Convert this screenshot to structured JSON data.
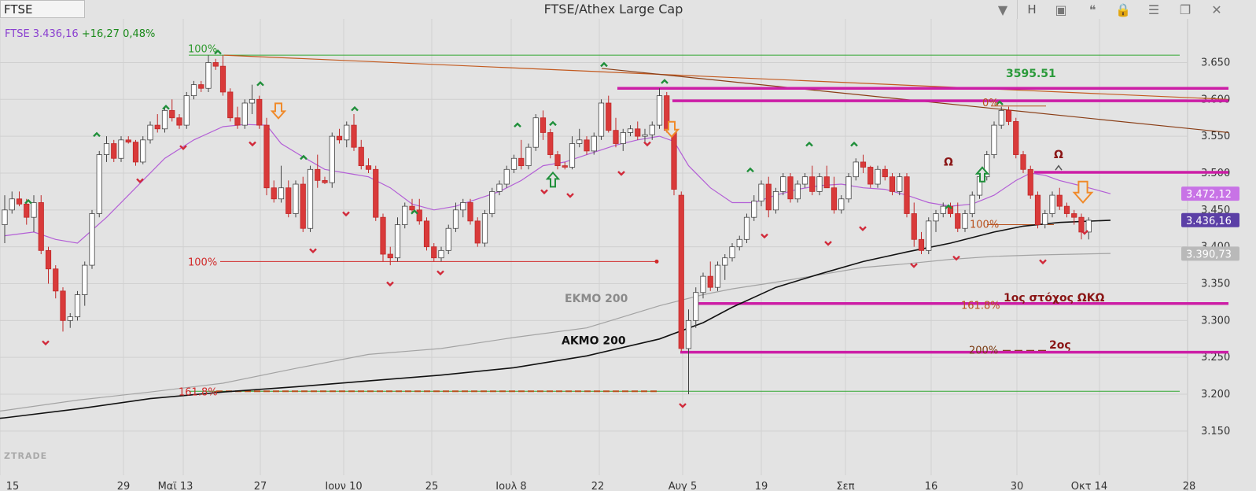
{
  "toolbar": {
    "symbol": "FTSE",
    "title": "FTSE/Athex Large Cap",
    "h_button": "H"
  },
  "ticker": {
    "name": "FTSE 3.436,16",
    "change": "+16,27 0,48%"
  },
  "watermark": "ZTRADE",
  "colors": {
    "up": "#ffffff",
    "down": "#d93a3a",
    "ma_purple": "#b35fd6",
    "magenta": "#cc1ea6",
    "akmo": "#111111",
    "ekmo": "#a3a3a3",
    "trend": "#b8501c",
    "green_marker": "#1f8f3a",
    "red_marker": "#d12a3a",
    "orange_arrow": "#f08a2a"
  },
  "chart_data": {
    "type": "candlestick",
    "ylim": [
      3105,
      3690
    ],
    "y_ticks": [
      "3.650",
      "3.600",
      "3.550",
      "3.500",
      "3.450",
      "3.400",
      "3.350",
      "3.300",
      "3.250",
      "3.200",
      "3.150"
    ],
    "x_ticks": [
      "15",
      "29",
      "Μαϊ 13",
      "27",
      "Ιουν 10",
      "25",
      "Ιουλ 8",
      "22",
      "Αυγ 5",
      "19",
      "Σεπ",
      "16",
      "30",
      "Οκτ 14",
      "28"
    ],
    "candles": [
      [
        3430,
        3470,
        3405,
        3450
      ],
      [
        3450,
        3475,
        3445,
        3465
      ],
      [
        3465,
        3475,
        3455,
        3458
      ],
      [
        3458,
        3465,
        3430,
        3440
      ],
      [
        3440,
        3470,
        3420,
        3460
      ],
      [
        3460,
        3470,
        3390,
        3395
      ],
      [
        3395,
        3400,
        3350,
        3370
      ],
      [
        3370,
        3375,
        3330,
        3340
      ],
      [
        3340,
        3345,
        3285,
        3300
      ],
      [
        3300,
        3310,
        3290,
        3305
      ],
      [
        3305,
        3340,
        3300,
        3335
      ],
      [
        3335,
        3380,
        3320,
        3375
      ],
      [
        3375,
        3450,
        3370,
        3445
      ],
      [
        3445,
        3530,
        3440,
        3525
      ],
      [
        3525,
        3550,
        3515,
        3540
      ],
      [
        3540,
        3545,
        3515,
        3520
      ],
      [
        3520,
        3550,
        3515,
        3545
      ],
      [
        3545,
        3550,
        3540,
        3542
      ],
      [
        3542,
        3545,
        3510,
        3515
      ],
      [
        3515,
        3550,
        3512,
        3545
      ],
      [
        3545,
        3570,
        3540,
        3565
      ],
      [
        3565,
        3580,
        3555,
        3560
      ],
      [
        3560,
        3590,
        3555,
        3585
      ],
      [
        3585,
        3600,
        3570,
        3575
      ],
      [
        3575,
        3580,
        3560,
        3565
      ],
      [
        3565,
        3610,
        3560,
        3605
      ],
      [
        3605,
        3625,
        3600,
        3620
      ],
      [
        3620,
        3625,
        3610,
        3615
      ],
      [
        3615,
        3660,
        3610,
        3650
      ],
      [
        3650,
        3655,
        3640,
        3645
      ],
      [
        3645,
        3660,
        3605,
        3610
      ],
      [
        3610,
        3615,
        3570,
        3575
      ],
      [
        3575,
        3590,
        3560,
        3565
      ],
      [
        3565,
        3600,
        3560,
        3595
      ],
      [
        3595,
        3620,
        3580,
        3600
      ],
      [
        3600,
        3605,
        3560,
        3565
      ],
      [
        3565,
        3575,
        3470,
        3480
      ],
      [
        3480,
        3490,
        3460,
        3465
      ],
      [
        3465,
        3510,
        3460,
        3480
      ],
      [
        3480,
        3490,
        3440,
        3445
      ],
      [
        3445,
        3490,
        3440,
        3485
      ],
      [
        3485,
        3495,
        3420,
        3425
      ],
      [
        3425,
        3510,
        3420,
        3505
      ],
      [
        3505,
        3525,
        3480,
        3490
      ],
      [
        3490,
        3495,
        3485,
        3487
      ],
      [
        3487,
        3555,
        3480,
        3550
      ],
      [
        3550,
        3560,
        3540,
        3545
      ],
      [
        3545,
        3570,
        3535,
        3565
      ],
      [
        3565,
        3580,
        3530,
        3535
      ],
      [
        3535,
        3545,
        3505,
        3510
      ],
      [
        3510,
        3520,
        3500,
        3505
      ],
      [
        3505,
        3510,
        3435,
        3440
      ],
      [
        3440,
        3445,
        3380,
        3390
      ],
      [
        3390,
        3400,
        3375,
        3385
      ],
      [
        3385,
        3440,
        3380,
        3430
      ],
      [
        3430,
        3460,
        3425,
        3455
      ],
      [
        3455,
        3465,
        3445,
        3450
      ],
      [
        3450,
        3465,
        3430,
        3435
      ],
      [
        3435,
        3440,
        3395,
        3400
      ],
      [
        3400,
        3405,
        3380,
        3385
      ],
      [
        3385,
        3400,
        3380,
        3395
      ],
      [
        3395,
        3430,
        3390,
        3425
      ],
      [
        3425,
        3460,
        3420,
        3450
      ],
      [
        3450,
        3465,
        3440,
        3460
      ],
      [
        3460,
        3465,
        3430,
        3435
      ],
      [
        3435,
        3440,
        3400,
        3405
      ],
      [
        3405,
        3450,
        3400,
        3445
      ],
      [
        3445,
        3480,
        3440,
        3475
      ],
      [
        3475,
        3490,
        3470,
        3485
      ],
      [
        3485,
        3510,
        3480,
        3505
      ],
      [
        3505,
        3525,
        3500,
        3520
      ],
      [
        3520,
        3545,
        3505,
        3510
      ],
      [
        3510,
        3540,
        3505,
        3535
      ],
      [
        3535,
        3580,
        3530,
        3575
      ],
      [
        3575,
        3585,
        3545,
        3555
      ],
      [
        3555,
        3560,
        3520,
        3525
      ],
      [
        3525,
        3530,
        3505,
        3510
      ],
      [
        3510,
        3515,
        3505,
        3508
      ],
      [
        3508,
        3550,
        3505,
        3540
      ],
      [
        3540,
        3560,
        3535,
        3545
      ],
      [
        3545,
        3550,
        3525,
        3530
      ],
      [
        3530,
        3555,
        3525,
        3550
      ],
      [
        3550,
        3600,
        3545,
        3595
      ],
      [
        3595,
        3605,
        3555,
        3558
      ],
      [
        3558,
        3575,
        3535,
        3540
      ],
      [
        3540,
        3560,
        3530,
        3555
      ],
      [
        3555,
        3565,
        3550,
        3560
      ],
      [
        3560,
        3570,
        3545,
        3550
      ],
      [
        3550,
        3560,
        3540,
        3552
      ],
      [
        3552,
        3570,
        3545,
        3565
      ],
      [
        3565,
        3615,
        3560,
        3605
      ],
      [
        3605,
        3610,
        3555,
        3558
      ],
      [
        3555,
        3560,
        3470,
        3478
      ],
      [
        3470,
        3475,
        3258,
        3262
      ],
      [
        3262,
        3315,
        3200,
        3300
      ],
      [
        3300,
        3345,
        3290,
        3338
      ],
      [
        3338,
        3365,
        3330,
        3360
      ],
      [
        3360,
        3380,
        3340,
        3345
      ],
      [
        3345,
        3380,
        3340,
        3375
      ],
      [
        3375,
        3390,
        3355,
        3385
      ],
      [
        3385,
        3405,
        3380,
        3400
      ],
      [
        3400,
        3415,
        3395,
        3410
      ],
      [
        3410,
        3445,
        3405,
        3440
      ],
      [
        3440,
        3470,
        3435,
        3462
      ],
      [
        3462,
        3490,
        3455,
        3485
      ],
      [
        3485,
        3495,
        3440,
        3450
      ],
      [
        3450,
        3480,
        3445,
        3475
      ],
      [
        3475,
        3500,
        3470,
        3495
      ],
      [
        3495,
        3500,
        3460,
        3465
      ],
      [
        3465,
        3490,
        3460,
        3485
      ],
      [
        3485,
        3500,
        3480,
        3495
      ],
      [
        3495,
        3510,
        3470,
        3475
      ],
      [
        3475,
        3500,
        3470,
        3495
      ],
      [
        3495,
        3510,
        3480,
        3480
      ],
      [
        3480,
        3495,
        3445,
        3450
      ],
      [
        3450,
        3470,
        3445,
        3465
      ],
      [
        3465,
        3500,
        3460,
        3495
      ],
      [
        3495,
        3520,
        3490,
        3515
      ],
      [
        3515,
        3525,
        3500,
        3508
      ],
      [
        3508,
        3510,
        3480,
        3485
      ],
      [
        3485,
        3510,
        3480,
        3505
      ],
      [
        3505,
        3510,
        3490,
        3495
      ],
      [
        3495,
        3500,
        3470,
        3475
      ],
      [
        3475,
        3500,
        3470,
        3495
      ],
      [
        3495,
        3500,
        3440,
        3445
      ],
      [
        3445,
        3460,
        3400,
        3410
      ],
      [
        3410,
        3420,
        3390,
        3395
      ],
      [
        3395,
        3440,
        3390,
        3435
      ],
      [
        3435,
        3450,
        3420,
        3445
      ],
      [
        3445,
        3460,
        3440,
        3455
      ],
      [
        3455,
        3460,
        3440,
        3445
      ],
      [
        3445,
        3460,
        3420,
        3425
      ],
      [
        3425,
        3450,
        3420,
        3445
      ],
      [
        3445,
        3475,
        3440,
        3470
      ],
      [
        3470,
        3500,
        3465,
        3495
      ],
      [
        3495,
        3530,
        3490,
        3525
      ],
      [
        3525,
        3570,
        3520,
        3565
      ],
      [
        3565,
        3590,
        3560,
        3585
      ],
      [
        3585,
        3590,
        3565,
        3570
      ],
      [
        3570,
        3575,
        3520,
        3525
      ],
      [
        3525,
        3530,
        3500,
        3505
      ],
      [
        3505,
        3510,
        3465,
        3470
      ],
      [
        3470,
        3475,
        3425,
        3430
      ],
      [
        3430,
        3450,
        3425,
        3445
      ],
      [
        3445,
        3475,
        3440,
        3470
      ],
      [
        3470,
        3480,
        3450,
        3455
      ],
      [
        3455,
        3460,
        3440,
        3445
      ],
      [
        3445,
        3450,
        3430,
        3440
      ],
      [
        3440,
        3445,
        3410,
        3420
      ],
      [
        3420,
        3440,
        3410,
        3436
      ]
    ],
    "ma_purple": [
      [
        0,
        3415
      ],
      [
        4,
        3420
      ],
      [
        7,
        3410
      ],
      [
        10,
        3405
      ],
      [
        14,
        3440
      ],
      [
        18,
        3480
      ],
      [
        22,
        3520
      ],
      [
        26,
        3545
      ],
      [
        30,
        3563
      ],
      [
        33,
        3566
      ],
      [
        36,
        3565
      ],
      [
        38,
        3540
      ],
      [
        41,
        3522
      ],
      [
        44,
        3505
      ],
      [
        47,
        3500
      ],
      [
        50,
        3495
      ],
      [
        53,
        3480
      ],
      [
        56,
        3458
      ],
      [
        59,
        3450
      ],
      [
        62,
        3455
      ],
      [
        65,
        3465
      ],
      [
        68,
        3475
      ],
      [
        71,
        3490
      ],
      [
        74,
        3510
      ],
      [
        77,
        3515
      ],
      [
        80,
        3525
      ],
      [
        84,
        3538
      ],
      [
        87,
        3545
      ],
      [
        90,
        3550
      ],
      [
        92,
        3543
      ],
      [
        94,
        3510
      ],
      [
        97,
        3480
      ],
      [
        100,
        3460
      ],
      [
        103,
        3460
      ],
      [
        106,
        3470
      ],
      [
        109,
        3478
      ],
      [
        112,
        3483
      ],
      [
        115,
        3485
      ],
      [
        118,
        3480
      ],
      [
        121,
        3478
      ],
      [
        124,
        3470
      ],
      [
        127,
        3460
      ],
      [
        130,
        3455
      ],
      [
        133,
        3458
      ],
      [
        136,
        3470
      ],
      [
        139,
        3490
      ],
      [
        141,
        3500
      ],
      [
        143,
        3497
      ],
      [
        145,
        3490
      ],
      [
        147,
        3485
      ],
      [
        149,
        3480
      ],
      [
        152,
        3472
      ]
    ],
    "akmo_200": [
      [
        -10,
        3158
      ],
      [
        0,
        3168
      ],
      [
        10,
        3180
      ],
      [
        20,
        3194
      ],
      [
        30,
        3203
      ],
      [
        40,
        3210
      ],
      [
        50,
        3218
      ],
      [
        60,
        3226
      ],
      [
        70,
        3236
      ],
      [
        80,
        3252
      ],
      [
        90,
        3275
      ],
      [
        96,
        3297
      ],
      [
        100,
        3318
      ],
      [
        106,
        3345
      ],
      [
        112,
        3363
      ],
      [
        118,
        3380
      ],
      [
        124,
        3393
      ],
      [
        130,
        3405
      ],
      [
        136,
        3420
      ],
      [
        140,
        3428
      ],
      [
        145,
        3433
      ],
      [
        152,
        3436
      ]
    ],
    "ekmo_200": [
      [
        -10,
        3165
      ],
      [
        0,
        3178
      ],
      [
        10,
        3192
      ],
      [
        20,
        3203
      ],
      [
        30,
        3215
      ],
      [
        40,
        3235
      ],
      [
        50,
        3254
      ],
      [
        60,
        3262
      ],
      [
        70,
        3277
      ],
      [
        80,
        3290
      ],
      [
        90,
        3320
      ],
      [
        96,
        3335
      ],
      [
        100,
        3343
      ],
      [
        106,
        3352
      ],
      [
        112,
        3362
      ],
      [
        118,
        3372
      ],
      [
        124,
        3377
      ],
      [
        130,
        3383
      ],
      [
        136,
        3387
      ],
      [
        142,
        3389
      ],
      [
        152,
        3391
      ]
    ],
    "price_labels": [
      {
        "value": 3472.12,
        "text": "3.472,12",
        "color": "#c873e6"
      },
      {
        "value": 3436.16,
        "text": "3.436,16",
        "color": "#5b3fa6"
      },
      {
        "value": 3390.73,
        "text": "3.390,73",
        "color": "#b9b9b9"
      }
    ],
    "annotations": {
      "pct_100_top": "100%",
      "pct_100_mid": "100%",
      "pct_161_left": "161.8%",
      "pct_0": "0%",
      "pct_100_right": "100%",
      "pct_161_right": "161.8%",
      "pct_200": "200%",
      "level_3595": "3595.51",
      "omega_1": "Ω",
      "omega_2": "Ω",
      "target_1": "1ος στόχος ΩΚΩ",
      "target_2": "2ος",
      "ekmo_label": "ΕΚΜΟ 200",
      "akmo_label": "ΑΚΜΟ 200"
    },
    "title": "FTSE/Athex Large Cap"
  }
}
